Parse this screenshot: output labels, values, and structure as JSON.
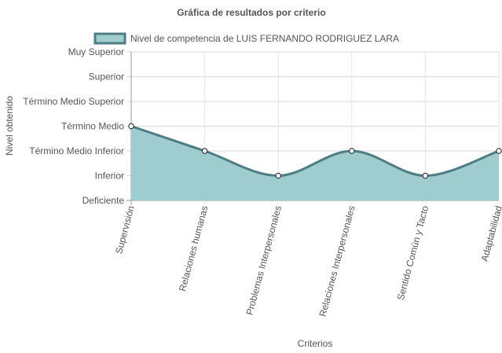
{
  "chart_data": {
    "type": "area",
    "title": "Gráfica de resultados por criterio",
    "xlabel": "Criterios",
    "ylabel": "Nivel obtenido",
    "legend_position": "top",
    "grid": true,
    "y_levels": [
      "Deficiente",
      "Inferior",
      "Término Medio Inferior",
      "Término Medio",
      "Término Medio Superior",
      "Superior",
      "Muy Superior"
    ],
    "ylim": [
      0,
      6
    ],
    "categories": [
      "Supervisión",
      "Relaciones humanas",
      "Problemas Interpersonales",
      "Relaciones Interpersonales",
      "Sentido Común y Tacto",
      "Adaptabilidad"
    ],
    "series": [
      {
        "name": "Nivel de competencia de LUIS FERNANDO RODRIGUEZ LARA",
        "values": [
          3,
          2,
          1,
          2,
          1,
          2
        ],
        "fill_color": "#9fcccf",
        "line_color": "#4e7d84"
      }
    ]
  }
}
